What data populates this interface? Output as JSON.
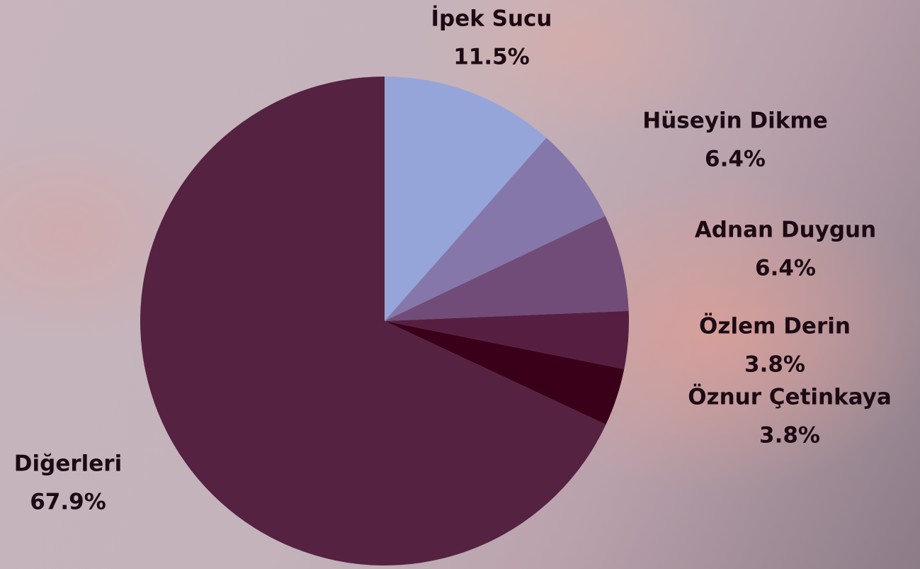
{
  "chart_data": {
    "type": "pie",
    "categories": [
      "İpek Sucu",
      "Hüseyin Dikme",
      "Adnan Duygun",
      "Özlem Derin",
      "Öznur Çetinkaya",
      "Diğerleri"
    ],
    "values": [
      11.5,
      6.4,
      6.4,
      3.8,
      3.8,
      67.9
    ],
    "value_labels": [
      "11.5%",
      "6.4%",
      "6.4%",
      "3.8%",
      "3.8%",
      "67.9%"
    ],
    "colors": [
      "#95a5d9",
      "#8577aa",
      "#714c78",
      "#561f41",
      "#3a0019",
      "#552242"
    ]
  }
}
